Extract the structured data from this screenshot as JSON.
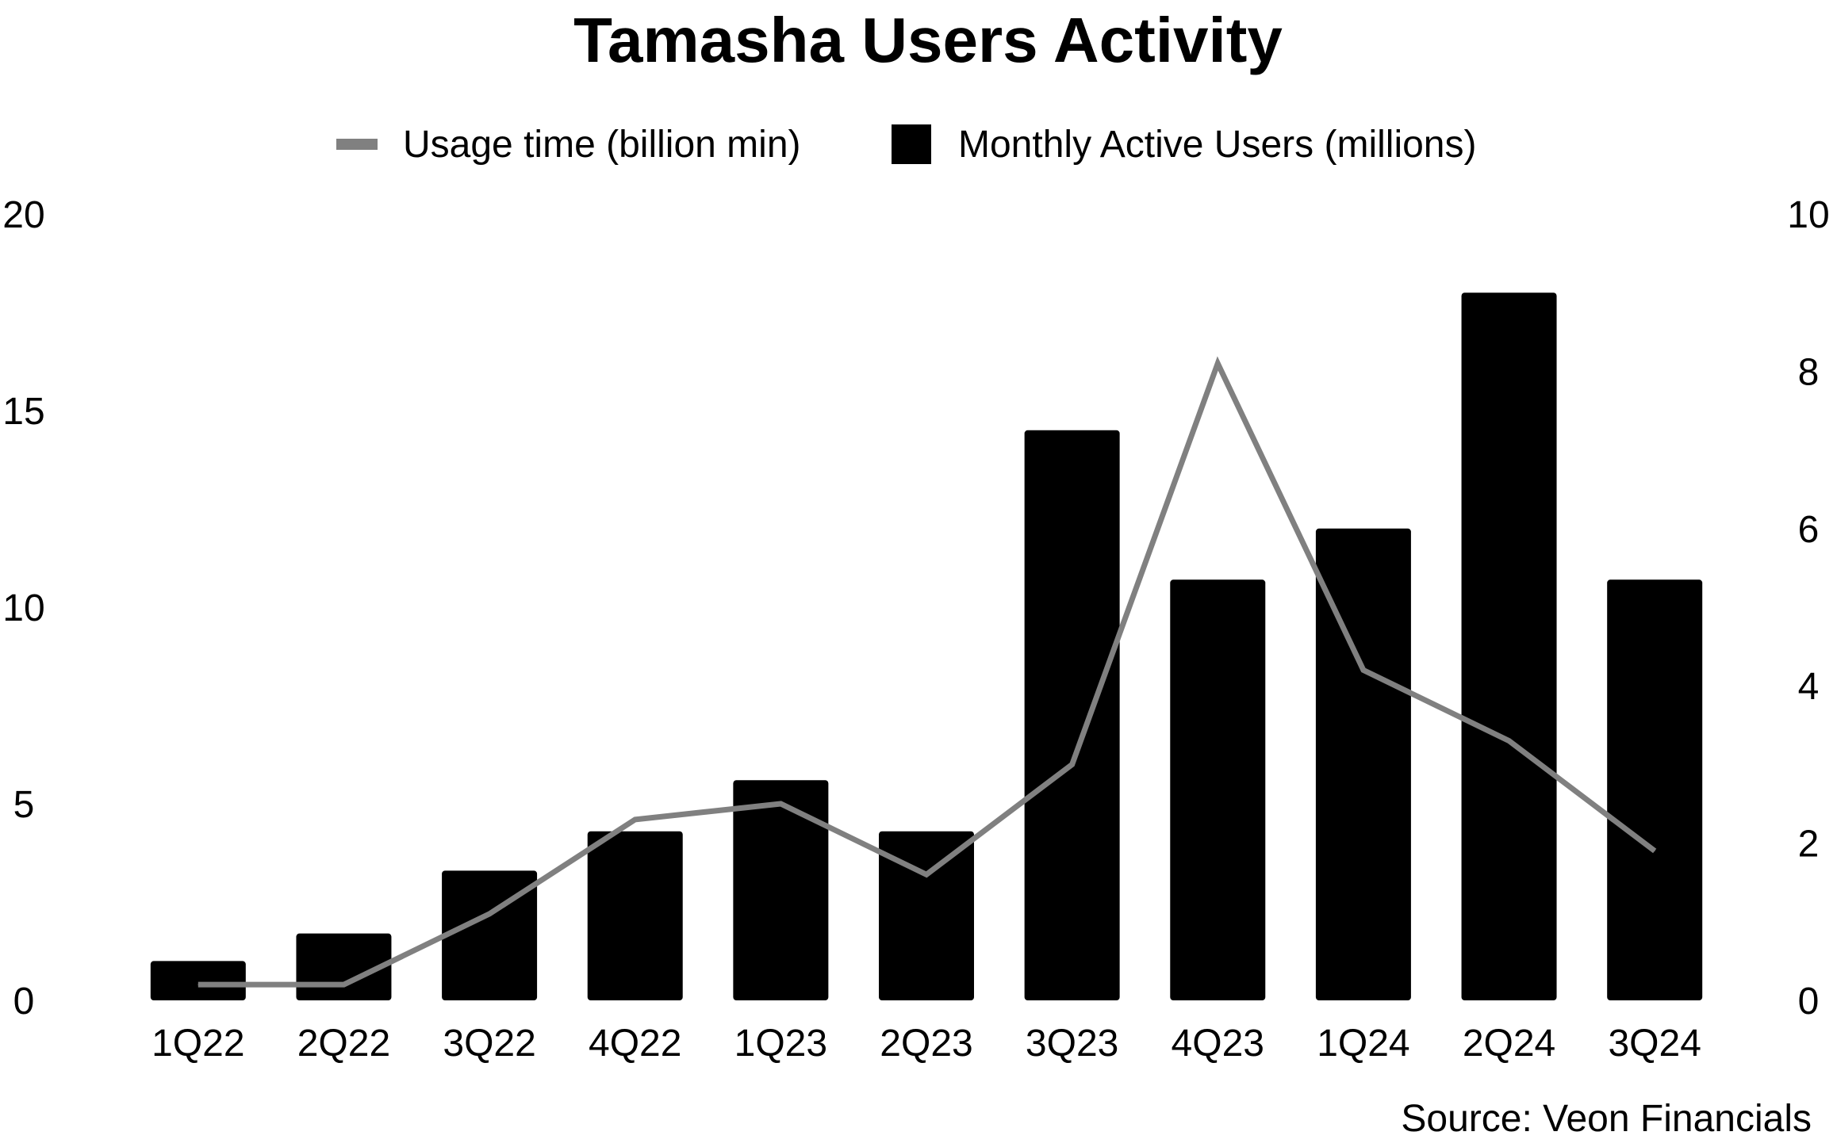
{
  "chart_data": {
    "type": "bar",
    "title": "Tamasha Users Activity",
    "source": "Source: Veon Financials",
    "categories": [
      "1Q22",
      "2Q22",
      "3Q22",
      "4Q22",
      "1Q23",
      "2Q23",
      "3Q23",
      "4Q23",
      "1Q24",
      "2Q24",
      "3Q24"
    ],
    "series": [
      {
        "name": "Monthly Active Users (millions)",
        "type": "bar",
        "axis": "left",
        "color": "#000000",
        "values": [
          1.0,
          1.7,
          3.3,
          4.3,
          5.6,
          4.3,
          14.5,
          10.7,
          12.0,
          18.0,
          10.7
        ]
      },
      {
        "name": "Usage time (billion min)",
        "type": "line",
        "axis": "right",
        "color": "#808080",
        "values": [
          0.2,
          0.2,
          1.1,
          2.3,
          2.5,
          1.6,
          3.0,
          8.1,
          4.2,
          3.3,
          1.9
        ]
      }
    ],
    "y_left": {
      "ylim": [
        0,
        20
      ],
      "ticks": [
        "0",
        "5",
        "10",
        "15",
        "20"
      ]
    },
    "y_right": {
      "ylim": [
        0,
        10
      ],
      "ticks": [
        "0",
        "2",
        "4",
        "6",
        "8",
        "10"
      ]
    },
    "grid": false,
    "legend_position": "top-center"
  }
}
